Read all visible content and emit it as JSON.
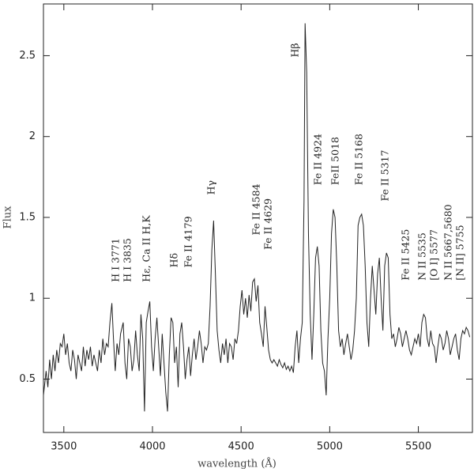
{
  "chart_data": {
    "type": "line",
    "xlabel": "wavelength (Å)",
    "ylabel": "Flux",
    "color": "#222222",
    "xlim": [
      3385,
      5805
    ],
    "ylim": [
      0.17,
      2.82
    ],
    "xticks": [
      3500,
      4000,
      4500,
      5000,
      5500
    ],
    "yticks": [
      0.5,
      1,
      1.5,
      2,
      2.5
    ],
    "x": [
      3385,
      3400,
      3410,
      3420,
      3430,
      3440,
      3450,
      3460,
      3470,
      3480,
      3490,
      3500,
      3510,
      3520,
      3530,
      3540,
      3550,
      3560,
      3570,
      3580,
      3590,
      3600,
      3610,
      3620,
      3630,
      3640,
      3650,
      3660,
      3670,
      3680,
      3690,
      3700,
      3710,
      3720,
      3730,
      3740,
      3750,
      3760,
      3771,
      3780,
      3790,
      3800,
      3810,
      3820,
      3835,
      3845,
      3855,
      3865,
      3875,
      3885,
      3895,
      3905,
      3915,
      3925,
      3935,
      3945,
      3955,
      3965,
      3975,
      3985,
      3995,
      4005,
      4015,
      4025,
      4035,
      4045,
      4055,
      4065,
      4075,
      4085,
      4095,
      4105,
      4115,
      4125,
      4135,
      4145,
      4155,
      4165,
      4175,
      4185,
      4195,
      4205,
      4215,
      4225,
      4235,
      4245,
      4255,
      4265,
      4275,
      4285,
      4295,
      4305,
      4315,
      4325,
      4335,
      4345,
      4355,
      4365,
      4375,
      4385,
      4395,
      4405,
      4415,
      4425,
      4435,
      4445,
      4455,
      4465,
      4475,
      4485,
      4495,
      4505,
      4515,
      4525,
      4535,
      4545,
      4555,
      4565,
      4575,
      4585,
      4595,
      4605,
      4615,
      4625,
      4635,
      4645,
      4655,
      4665,
      4675,
      4685,
      4695,
      4705,
      4715,
      4725,
      4735,
      4745,
      4755,
      4765,
      4775,
      4785,
      4795,
      4805,
      4815,
      4825,
      4835,
      4845,
      4855,
      4861,
      4870,
      4880,
      4890,
      4900,
      4910,
      4920,
      4930,
      4940,
      4950,
      4960,
      4970,
      4980,
      4990,
      5000,
      5010,
      5020,
      5030,
      5040,
      5050,
      5060,
      5070,
      5080,
      5090,
      5100,
      5110,
      5120,
      5130,
      5140,
      5150,
      5160,
      5170,
      5180,
      5190,
      5200,
      5210,
      5220,
      5230,
      5240,
      5250,
      5260,
      5270,
      5280,
      5290,
      5300,
      5310,
      5320,
      5330,
      5340,
      5350,
      5360,
      5370,
      5380,
      5390,
      5400,
      5410,
      5420,
      5430,
      5440,
      5450,
      5460,
      5470,
      5480,
      5490,
      5500,
      5510,
      5520,
      5530,
      5540,
      5550,
      5560,
      5570,
      5580,
      5590,
      5600,
      5610,
      5620,
      5630,
      5640,
      5650,
      5660,
      5670,
      5680,
      5690,
      5700,
      5710,
      5720,
      5730,
      5740,
      5750,
      5760,
      5770,
      5780,
      5790
    ],
    "values": [
      0.4,
      0.55,
      0.45,
      0.62,
      0.5,
      0.65,
      0.55,
      0.68,
      0.6,
      0.72,
      0.7,
      0.78,
      0.65,
      0.72,
      0.6,
      0.55,
      0.68,
      0.62,
      0.5,
      0.65,
      0.6,
      0.55,
      0.7,
      0.58,
      0.68,
      0.62,
      0.7,
      0.58,
      0.65,
      0.6,
      0.55,
      0.68,
      0.6,
      0.75,
      0.65,
      0.72,
      0.7,
      0.85,
      0.97,
      0.75,
      0.55,
      0.72,
      0.65,
      0.78,
      0.85,
      0.6,
      0.5,
      0.75,
      0.7,
      0.55,
      0.62,
      0.8,
      0.65,
      0.55,
      0.9,
      0.75,
      0.3,
      0.85,
      0.92,
      0.98,
      0.7,
      0.55,
      0.75,
      0.88,
      0.7,
      0.52,
      0.78,
      0.6,
      0.42,
      0.3,
      0.65,
      0.88,
      0.85,
      0.6,
      0.7,
      0.45,
      0.78,
      0.85,
      0.7,
      0.5,
      0.62,
      0.7,
      0.52,
      0.65,
      0.75,
      0.62,
      0.7,
      0.8,
      0.72,
      0.6,
      0.7,
      0.68,
      0.72,
      0.95,
      1.3,
      1.48,
      1.15,
      0.8,
      0.68,
      0.6,
      0.72,
      0.65,
      0.75,
      0.6,
      0.72,
      0.7,
      0.62,
      0.75,
      0.72,
      0.8,
      0.95,
      1.05,
      0.9,
      1.0,
      0.88,
      1.02,
      0.92,
      1.1,
      1.12,
      0.98,
      1.08,
      0.85,
      0.78,
      0.7,
      0.95,
      0.82,
      0.68,
      0.62,
      0.6,
      0.62,
      0.6,
      0.58,
      0.62,
      0.59,
      0.57,
      0.6,
      0.56,
      0.58,
      0.55,
      0.58,
      0.54,
      0.7,
      0.8,
      0.6,
      0.75,
      0.85,
      1.6,
      2.7,
      2.4,
      1.4,
      0.9,
      0.62,
      0.9,
      1.25,
      1.32,
      1.2,
      0.8,
      0.6,
      0.55,
      0.4,
      0.75,
      1.0,
      1.4,
      1.55,
      1.5,
      1.2,
      0.8,
      0.7,
      0.75,
      0.65,
      0.72,
      0.78,
      0.7,
      0.62,
      0.68,
      0.8,
      1.0,
      1.45,
      1.5,
      1.52,
      1.45,
      1.2,
      0.85,
      0.7,
      1.0,
      1.2,
      1.05,
      0.9,
      1.15,
      1.25,
      1.0,
      0.8,
      1.2,
      1.28,
      1.25,
      0.9,
      0.75,
      0.78,
      0.7,
      0.75,
      0.82,
      0.78,
      0.7,
      0.75,
      0.8,
      0.75,
      0.68,
      0.65,
      0.7,
      0.75,
      0.72,
      0.78,
      0.7,
      0.85,
      0.9,
      0.88,
      0.75,
      0.7,
      0.8,
      0.72,
      0.7,
      0.6,
      0.7,
      0.78,
      0.75,
      0.68,
      0.72,
      0.8,
      0.75,
      0.65,
      0.7,
      0.75,
      0.78,
      0.68,
      0.62,
      0.75,
      0.8,
      0.78,
      0.82,
      0.8,
      0.76
    ],
    "annotations": [
      {
        "text": "H I 3771",
        "x": 3795,
        "y": 1.1
      },
      {
        "text": "H I 3835",
        "x": 3862,
        "y": 1.1
      },
      {
        "text": "Hε, Ca II H,K",
        "x": 3969,
        "y": 1.1
      },
      {
        "text": "Hδ",
        "x": 4125,
        "y": 1.19
      },
      {
        "text": "Fe II 4179",
        "x": 4205,
        "y": 1.19
      },
      {
        "text": "Hγ",
        "x": 4334,
        "y": 1.64
      },
      {
        "text": "Fe II 4584",
        "x": 4588,
        "y": 1.39
      },
      {
        "text": "Fe II 4629",
        "x": 4655,
        "y": 1.3
      },
      {
        "text": "Hβ",
        "x": 4806,
        "y": 2.49
      },
      {
        "text": "Fe II 4924",
        "x": 4936,
        "y": 1.7
      },
      {
        "text": "FeII 5018",
        "x": 5034,
        "y": 1.7
      },
      {
        "text": "Fe II 5168",
        "x": 5167,
        "y": 1.7
      },
      {
        "text": "Fe II 5317",
        "x": 5315,
        "y": 1.6
      },
      {
        "text": "Fe II 5425",
        "x": 5430,
        "y": 1.11
      },
      {
        "text": "N II 5535",
        "x": 5524,
        "y": 1.11
      },
      {
        "text": "[O I] 5577",
        "x": 5591,
        "y": 1.11
      },
      {
        "text": "N II 5667,5680",
        "x": 5671,
        "y": 1.11
      },
      {
        "text": "[N II] 5755",
        "x": 5738,
        "y": 1.11
      }
    ]
  }
}
